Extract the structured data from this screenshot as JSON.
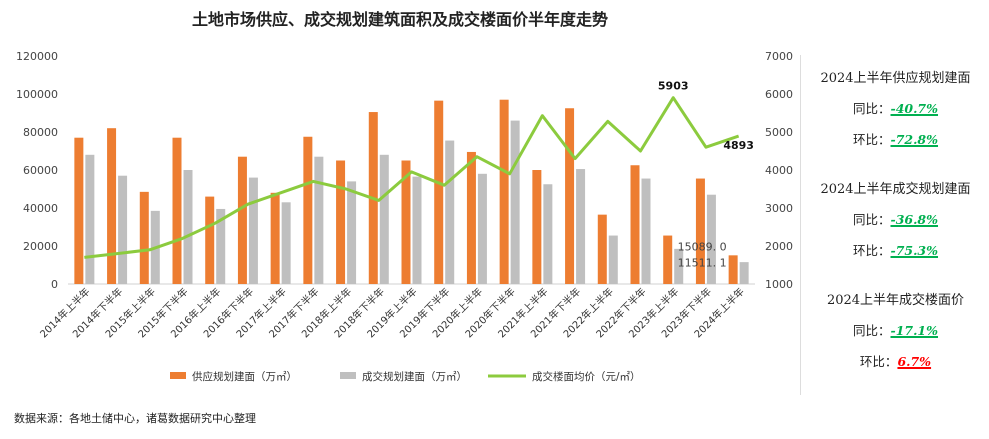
{
  "chart_data": {
    "type": "bar",
    "title": "土地市场供应、成交规划建筑面积及成交楼面价半年度走势",
    "categories": [
      "2014年上半年",
      "2014年下半年",
      "2015年上半年",
      "2015年下半年",
      "2016年上半年",
      "2016年下半年",
      "2017年上半年",
      "2017年下半年",
      "2018年上半年",
      "2018年下半年",
      "2019年上半年",
      "2019年下半年",
      "2020年上半年",
      "2020年下半年",
      "2021年上半年",
      "2021年下半年",
      "2022年上半年",
      "2022年下半年",
      "2023年上半年",
      "2023年下半年",
      "2024年上半年"
    ],
    "series": [
      {
        "name": "供应规划建面（万㎡）",
        "type": "bar",
        "axis": "left",
        "color": "#ED7D31",
        "values": [
          77000,
          82000,
          48500,
          77000,
          46000,
          67000,
          48000,
          77500,
          65000,
          90500,
          65000,
          96500,
          69500,
          97000,
          60000,
          92500,
          36500,
          62500,
          25500,
          55500,
          15089.0
        ]
      },
      {
        "name": "成交规划建面（万㎡）",
        "type": "bar",
        "axis": "left",
        "color": "#BFBFBF",
        "values": [
          68000,
          57000,
          38500,
          60000,
          39500,
          56000,
          43000,
          67000,
          54000,
          68000,
          56500,
          75500,
          58000,
          86000,
          52500,
          60500,
          25500,
          55500,
          18500,
          47000,
          11511.1
        ]
      },
      {
        "name": "成交楼面均价（元/㎡）",
        "type": "line",
        "axis": "right",
        "color": "#8CCB3E",
        "values": [
          1700,
          1800,
          1900,
          2200,
          2600,
          3100,
          3400,
          3700,
          3500,
          3200,
          3950,
          3600,
          4350,
          3900,
          5430,
          4300,
          5280,
          4500,
          5903,
          4600,
          4893
        ]
      }
    ],
    "data_labels": [
      {
        "series": 0,
        "index": 20,
        "text": "15089. 0"
      },
      {
        "series": 1,
        "index": 20,
        "text": "11511. 1"
      },
      {
        "series": 2,
        "index": 18,
        "text": "5903"
      },
      {
        "series": 2,
        "index": 20,
        "text": "4893"
      }
    ],
    "ylim_left": [
      0,
      120000
    ],
    "yticks_left": [
      "0",
      "20000",
      "40000",
      "60000",
      "80000",
      "100000",
      "120000"
    ],
    "ylim_right": [
      1000,
      7000
    ],
    "yticks_right": [
      "1000",
      "2000",
      "3000",
      "4000",
      "5000",
      "6000",
      "7000"
    ],
    "legend": "bottom",
    "grid": false
  },
  "side": [
    {
      "heading": "2024上半年供应规划建面",
      "rows": [
        {
          "label": "同比：",
          "value": "-40.7%",
          "color": "#00B050"
        },
        {
          "label": "环比：",
          "value": "-72.8%",
          "color": "#00B050"
        }
      ]
    },
    {
      "heading": "2024上半年成交规划建面",
      "rows": [
        {
          "label": "同比：",
          "value": "-36.8%",
          "color": "#00B050"
        },
        {
          "label": "环比：",
          "value": "-75.3%",
          "color": "#00B050"
        }
      ]
    },
    {
      "heading": "2024上半年成交楼面价",
      "rows": [
        {
          "label": "同比：",
          "value": "-17.1%",
          "color": "#00B050"
        },
        {
          "label": "环比：",
          "value": "6.7%",
          "color": "#FF0000"
        }
      ]
    }
  ],
  "source": "数据来源：各地土储中心，诸葛数据研究中心整理"
}
